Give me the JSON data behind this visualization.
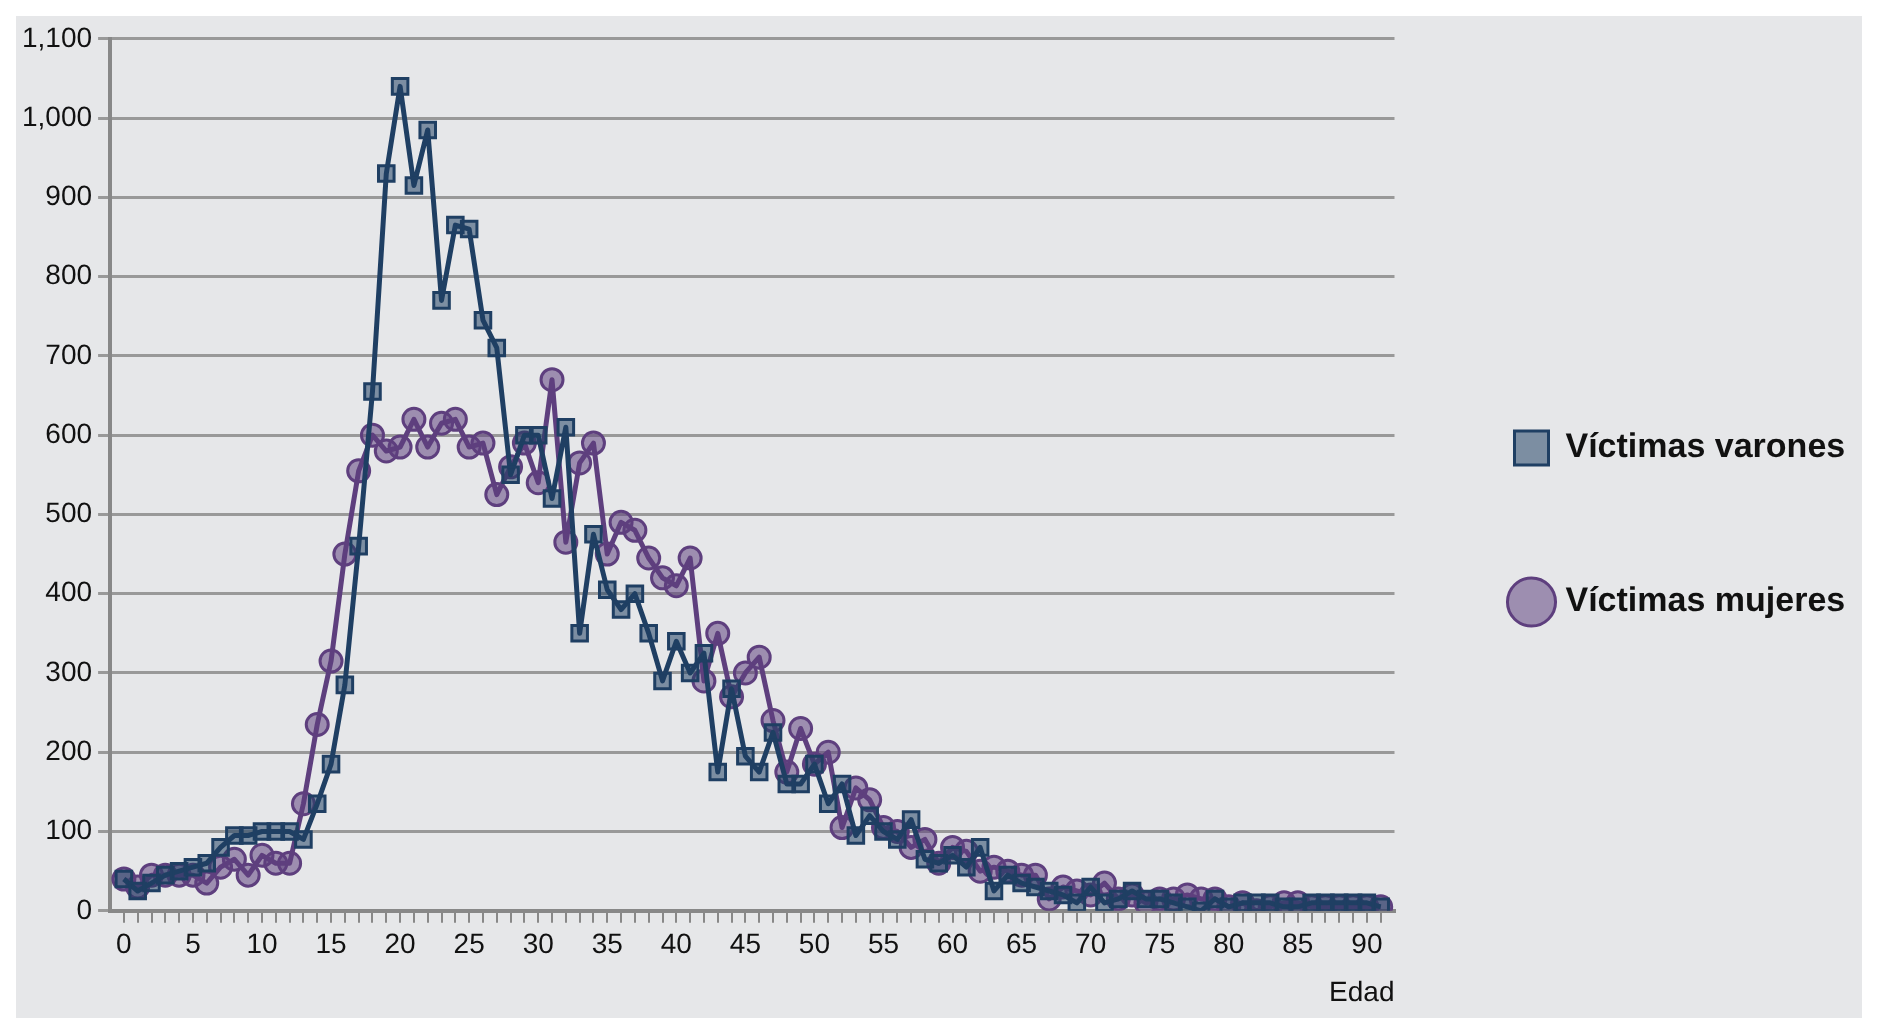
{
  "chart_data": {
    "type": "line",
    "xlabel": "Edad",
    "x": [
      0,
      1,
      2,
      3,
      4,
      5,
      6,
      7,
      8,
      9,
      10,
      11,
      12,
      13,
      14,
      15,
      16,
      17,
      18,
      19,
      20,
      21,
      22,
      23,
      24,
      25,
      26,
      27,
      28,
      29,
      30,
      31,
      32,
      33,
      34,
      35,
      36,
      37,
      38,
      39,
      40,
      41,
      42,
      43,
      44,
      45,
      46,
      47,
      48,
      49,
      50,
      51,
      52,
      53,
      54,
      55,
      56,
      57,
      58,
      59,
      60,
      61,
      62,
      63,
      64,
      65,
      66,
      67,
      68,
      69,
      70,
      71,
      72,
      73,
      74,
      75,
      76,
      77,
      78,
      79,
      80,
      81,
      82,
      83,
      84,
      85,
      86,
      87,
      88,
      89,
      90,
      91
    ],
    "series": [
      {
        "name": "Víctimas varones",
        "color": "#1f3f63",
        "marker": "square",
        "values": [
          40,
          25,
          35,
          45,
          50,
          55,
          60,
          80,
          95,
          95,
          100,
          100,
          100,
          90,
          135,
          185,
          285,
          460,
          655,
          930,
          1040,
          915,
          985,
          770,
          865,
          860,
          745,
          710,
          550,
          600,
          600,
          520,
          610,
          350,
          475,
          405,
          380,
          400,
          350,
          290,
          340,
          300,
          325,
          175,
          280,
          195,
          175,
          225,
          160,
          160,
          185,
          135,
          160,
          95,
          120,
          100,
          90,
          115,
          65,
          60,
          70,
          55,
          80,
          25,
          45,
          35,
          30,
          25,
          20,
          10,
          30,
          10,
          15,
          25,
          15,
          15,
          10,
          5,
          0,
          15,
          5,
          10,
          10,
          10,
          5,
          5,
          10,
          10,
          10,
          10,
          10,
          5
        ]
      },
      {
        "name": "Víctimas mujeres",
        "color": "#5e3f7e",
        "marker": "circle",
        "values": [
          40,
          30,
          45,
          45,
          45,
          45,
          35,
          55,
          65,
          45,
          70,
          60,
          60,
          135,
          235,
          315,
          450,
          555,
          600,
          580,
          585,
          620,
          585,
          615,
          620,
          585,
          590,
          525,
          560,
          590,
          540,
          670,
          465,
          565,
          590,
          450,
          490,
          480,
          445,
          420,
          410,
          445,
          290,
          350,
          270,
          300,
          320,
          240,
          175,
          230,
          185,
          200,
          105,
          155,
          140,
          105,
          100,
          80,
          90,
          60,
          80,
          75,
          50,
          55,
          50,
          45,
          45,
          15,
          30,
          25,
          20,
          35,
          15,
          20,
          10,
          15,
          15,
          20,
          15,
          15,
          5,
          10,
          0,
          5,
          10,
          10,
          5,
          5,
          5,
          5,
          5,
          5
        ]
      }
    ],
    "xlim": [
      -1,
      92
    ],
    "xticks": [
      0,
      {
        "value": 1,
        "label": null
      },
      {
        "value": 2,
        "label": null
      },
      {
        "value": 3,
        "label": null
      },
      {
        "value": 4,
        "label": null
      },
      5,
      {
        "value": 6,
        "label": null
      },
      {
        "value": 7,
        "label": null
      },
      {
        "value": 8,
        "label": null
      },
      {
        "value": 9,
        "label": null
      },
      10,
      {
        "value": 11,
        "label": null
      },
      {
        "value": 12,
        "label": null
      },
      {
        "value": 13,
        "label": null
      },
      {
        "value": 14,
        "label": null
      },
      15,
      {
        "value": 16,
        "label": null
      },
      {
        "value": 17,
        "label": null
      },
      {
        "value": 18,
        "label": null
      },
      {
        "value": 19,
        "label": null
      },
      20,
      {
        "value": 21,
        "label": null
      },
      {
        "value": 22,
        "label": null
      },
      {
        "value": 23,
        "label": null
      },
      {
        "value": 24,
        "label": null
      },
      25,
      {
        "value": 26,
        "label": null
      },
      {
        "value": 27,
        "label": null
      },
      {
        "value": 28,
        "label": null
      },
      {
        "value": 29,
        "label": null
      },
      30,
      {
        "value": 31,
        "label": null
      },
      {
        "value": 32,
        "label": null
      },
      {
        "value": 33,
        "label": null
      },
      {
        "value": 34,
        "label": null
      },
      35,
      {
        "value": 36,
        "label": null
      },
      {
        "value": 37,
        "label": null
      },
      {
        "value": 38,
        "label": null
      },
      {
        "value": 39,
        "label": null
      },
      40,
      {
        "value": 41,
        "label": null
      },
      {
        "value": 42,
        "label": null
      },
      {
        "value": 43,
        "label": null
      },
      {
        "value": 44,
        "label": null
      },
      45,
      {
        "value": 46,
        "label": null
      },
      {
        "value": 47,
        "label": null
      },
      {
        "value": 48,
        "label": null
      },
      {
        "value": 49,
        "label": null
      },
      50,
      {
        "value": 51,
        "label": null
      },
      {
        "value": 52,
        "label": null
      },
      {
        "value": 53,
        "label": null
      },
      {
        "value": 54,
        "label": null
      },
      55,
      {
        "value": 56,
        "label": null
      },
      {
        "value": 57,
        "label": null
      },
      {
        "value": 58,
        "label": null
      },
      {
        "value": 59,
        "label": null
      },
      60,
      {
        "value": 61,
        "label": null
      },
      {
        "value": 62,
        "label": null
      },
      {
        "value": 63,
        "label": null
      },
      {
        "value": 64,
        "label": null
      },
      65,
      {
        "value": 66,
        "label": null
      },
      {
        "value": 67,
        "label": null
      },
      {
        "value": 68,
        "label": null
      },
      {
        "value": 69,
        "label": null
      },
      70,
      {
        "value": 71,
        "label": null
      },
      {
        "value": 72,
        "label": null
      },
      {
        "value": 73,
        "label": null
      },
      {
        "value": 74,
        "label": null
      },
      75,
      {
        "value": 76,
        "label": null
      },
      {
        "value": 77,
        "label": null
      },
      {
        "value": 78,
        "label": null
      },
      {
        "value": 79,
        "label": null
      },
      80,
      {
        "value": 81,
        "label": null
      },
      {
        "value": 82,
        "label": null
      },
      {
        "value": 83,
        "label": null
      },
      {
        "value": 84,
        "label": null
      },
      85,
      {
        "value": 86,
        "label": null
      },
      {
        "value": 87,
        "label": null
      },
      {
        "value": 88,
        "label": null
      },
      {
        "value": 89,
        "label": null
      },
      90,
      {
        "value": 91,
        "label": null
      }
    ],
    "ylim": [
      0,
      1100
    ],
    "yticks": [
      0,
      100,
      200,
      300,
      400,
      500,
      600,
      700,
      800,
      900,
      {
        "value": 1000,
        "label": "1,000"
      },
      {
        "value": 1100,
        "label": "1,100"
      }
    ],
    "grid": "y",
    "legend": "right",
    "line_style": "solid"
  }
}
